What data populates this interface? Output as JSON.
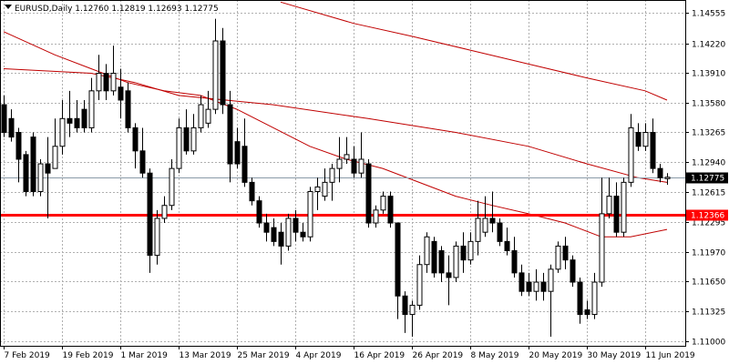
{
  "chart_data": {
    "type": "candlestick",
    "title": "EURUSD,Daily  1.12760 1.12819 1.12693 1.12775",
    "categories": [
      "7 Feb 2019",
      null,
      null,
      null,
      null,
      null,
      null,
      null,
      "19 Feb 2019",
      null,
      null,
      null,
      null,
      null,
      null,
      null,
      "1 Mar 2019",
      null,
      null,
      null,
      null,
      null,
      null,
      null,
      "13 Mar 2019",
      null,
      null,
      null,
      null,
      null,
      null,
      null,
      "25 Mar 2019",
      null,
      null,
      null,
      null,
      null,
      null,
      null,
      "4 Apr 2019",
      null,
      null,
      null,
      null,
      null,
      null,
      null,
      "16 Apr 2019",
      null,
      null,
      null,
      null,
      null,
      null,
      null,
      "26 Apr 2019",
      null,
      null,
      null,
      null,
      null,
      null,
      null,
      "8 May 2019",
      null,
      null,
      null,
      null,
      null,
      null,
      null,
      "20 May 2019",
      null,
      null,
      null,
      null,
      null,
      null,
      null,
      "30 May 2019",
      null,
      null,
      null,
      null,
      null,
      null,
      null,
      "11 Jun 2019",
      null,
      null,
      null
    ],
    "ohlc": {
      "open": [
        1.1356,
        1.1341,
        1.1326,
        1.1302,
        1.1321,
        1.1262,
        1.1292,
        1.1287,
        1.1311,
        1.1341,
        1.1341,
        1.1351,
        1.1331,
        1.1371,
        1.139,
        1.1371,
        1.1375,
        1.1371,
        1.1331,
        1.1306,
        1.1282,
        1.1193,
        1.1233,
        1.1247,
        1.1287,
        1.1331,
        1.1306,
        1.1331,
        1.1336,
        1.1351,
        1.1425,
        1.1356,
        1.1316,
        1.1311,
        1.1272,
        1.1252,
        1.1228,
        1.1223,
        1.1218,
        1.1203,
        1.1233,
        1.1218,
        1.1213,
        1.1262,
        1.1257,
        1.1272,
        1.1287,
        1.1297,
        1.1297,
        1.1282,
        1.1292,
        1.1228,
        1.1242,
        1.1257,
        1.1228,
        1.1149,
        1.1129,
        1.1139,
        1.1183,
        1.1208,
        1.1198,
        1.1174,
        1.1169,
        1.1203,
        1.1188,
        1.1208,
        1.1218,
        1.1233,
        1.1228,
        1.1208,
        1.1198,
        1.1174,
        1.1164,
        1.1154,
        1.1164,
        1.1154,
        1.1178,
        1.1203,
        1.1188,
        1.1164,
        1.1134,
        1.1129,
        1.1164,
        1.1238,
        1.1257,
        1.1218,
        1.1272,
        1.1326,
        1.1311,
        1.1326,
        1.1287,
        1.1276
      ],
      "high": [
        1.1366,
        1.1351,
        1.1331,
        1.1306,
        1.1326,
        1.1297,
        1.1321,
        1.1341,
        1.1361,
        1.1371,
        1.1361,
        1.1361,
        1.1385,
        1.141,
        1.14,
        1.142,
        1.1395,
        1.138,
        1.1336,
        1.1331,
        1.1287,
        1.1242,
        1.1257,
        1.1297,
        1.1341,
        1.1351,
        1.1346,
        1.1366,
        1.1371,
        1.1449,
        1.1439,
        1.1371,
        1.1331,
        1.1341,
        1.1277,
        1.1257,
        1.1238,
        1.1233,
        1.1228,
        1.1238,
        1.1242,
        1.1228,
        1.1267,
        1.1277,
        1.1287,
        1.1292,
        1.1321,
        1.1321,
        1.1311,
        1.1326,
        1.1297,
        1.1247,
        1.1262,
        1.1262,
        1.1228,
        1.1154,
        1.1144,
        1.1193,
        1.1218,
        1.1213,
        1.1203,
        1.1193,
        1.1208,
        1.1218,
        1.1218,
        1.1252,
        1.1257,
        1.1262,
        1.1233,
        1.1223,
        1.1213,
        1.1183,
        1.1174,
        1.1178,
        1.1174,
        1.1183,
        1.1208,
        1.1213,
        1.1193,
        1.1169,
        1.1144,
        1.1174,
        1.1277,
        1.1277,
        1.1272,
        1.1277,
        1.1346,
        1.1336,
        1.1336,
        1.1341,
        1.1292,
        1.12819
      ],
      "low": [
        1.1321,
        1.1316,
        1.1272,
        1.1257,
        1.1257,
        1.1257,
        1.1233,
        1.1287,
        1.1302,
        1.1321,
        1.1326,
        1.1326,
        1.1326,
        1.1361,
        1.1361,
        1.1366,
        1.1341,
        1.1326,
        1.1287,
        1.1277,
        1.1174,
        1.1183,
        1.1228,
        1.1242,
        1.1282,
        1.1302,
        1.1302,
        1.1326,
        1.1331,
        1.1346,
        1.1346,
        1.1272,
        1.1287,
        1.1267,
        1.1247,
        1.1223,
        1.1208,
        1.1203,
        1.1183,
        1.1198,
        1.1208,
        1.1208,
        1.1208,
        1.1242,
        1.1252,
        1.1252,
        1.1272,
        1.1292,
        1.1277,
        1.1277,
        1.1223,
        1.1223,
        1.1238,
        1.1223,
        1.1124,
        1.1109,
        1.1105,
        1.1134,
        1.1174,
        1.1169,
        1.1164,
        1.1139,
        1.1164,
        1.1174,
        1.1183,
        1.1193,
        1.1213,
        1.1218,
        1.1203,
        1.1193,
        1.1169,
        1.1149,
        1.1149,
        1.1144,
        1.1144,
        1.1105,
        1.1174,
        1.1178,
        1.1159,
        1.1119,
        1.1124,
        1.1124,
        1.1159,
        1.1233,
        1.1213,
        1.1213,
        1.1267,
        1.1306,
        1.1306,
        1.1282,
        1.1272,
        1.12693
      ],
      "close": [
        1.1326,
        1.1321,
        1.1297,
        1.1262,
        1.1262,
        1.1292,
        1.1282,
        1.1311,
        1.1341,
        1.1336,
        1.1331,
        1.1331,
        1.1371,
        1.139,
        1.1371,
        1.139,
        1.1361,
        1.1331,
        1.1306,
        1.1282,
        1.1193,
        1.1233,
        1.1247,
        1.1287,
        1.1331,
        1.1306,
        1.1331,
        1.1356,
        1.1351,
        1.1425,
        1.1356,
        1.1292,
        1.1292,
        1.1272,
        1.1252,
        1.1228,
        1.1218,
        1.1208,
        1.1203,
        1.1233,
        1.1218,
        1.1213,
        1.1262,
        1.1267,
        1.1272,
        1.1287,
        1.1297,
        1.1302,
        1.1282,
        1.1297,
        1.1228,
        1.1242,
        1.1257,
        1.1228,
        1.1149,
        1.1129,
        1.1139,
        1.1183,
        1.1213,
        1.1174,
        1.1174,
        1.1169,
        1.1203,
        1.1188,
        1.1208,
        1.1233,
        1.1233,
        1.1228,
        1.1208,
        1.1198,
        1.1174,
        1.1154,
        1.1154,
        1.1164,
        1.1154,
        1.1178,
        1.1203,
        1.1188,
        1.1164,
        1.1129,
        1.1129,
        1.1164,
        1.1238,
        1.1257,
        1.1218,
        1.1272,
        1.1331,
        1.1311,
        1.1326,
        1.1287,
        1.1277,
        1.12775
      ]
    },
    "bull_color": "#ffffff",
    "bear_color": "#000000",
    "lines": [
      {
        "color": "#c00000",
        "x": [
          38,
          48,
          56,
          64,
          72,
          80,
          88,
          91
        ],
        "values": [
          1.1467,
          1.1444,
          1.143,
          1.1415,
          1.14,
          1.1385,
          1.1371,
          1.1361
        ]
      },
      {
        "color": "#c00000",
        "x": [
          0,
          12,
          18,
          24,
          37,
          50,
          62,
          72,
          80,
          87,
          91
        ],
        "values": [
          1.1395,
          1.139,
          1.138,
          1.1366,
          1.1356,
          1.1341,
          1.1326,
          1.1311,
          1.1292,
          1.1277,
          1.1272
        ]
      },
      {
        "color": "#c00000",
        "x": [
          0,
          7,
          12,
          17,
          22,
          27,
          32,
          37,
          42,
          47,
          52,
          57,
          62,
          67,
          72,
          77,
          82,
          86,
          91
        ],
        "values": [
          1.1435,
          1.141,
          1.1395,
          1.138,
          1.1371,
          1.1366,
          1.1351,
          1.1331,
          1.1311,
          1.1297,
          1.1287,
          1.1272,
          1.1257,
          1.1247,
          1.1238,
          1.1228,
          1.1213,
          1.1213,
          1.1221
        ]
      }
    ],
    "levels": [
      {
        "value": 1.12366,
        "color": "#ff0000"
      },
      {
        "value": 1.12775,
        "color": "#000000"
      }
    ],
    "ylim": [
      1.10951,
      1.14693
    ],
    "yticks": [
      1.14555,
      {
        "value": 1.1422,
        "label": "1.14220"
      },
      {
        "value": 1.1391,
        "label": "1.13910"
      },
      {
        "value": 1.1358,
        "label": "1.13580"
      },
      1.13265,
      {
        "value": 1.1294,
        "label": "1.12940"
      },
      1.12615,
      1.12295,
      {
        "value": 1.1197,
        "label": "1.11970"
      },
      {
        "value": 1.1165,
        "label": "1.11650"
      },
      1.11325,
      {
        "value": 1.11,
        "label": "1.11000"
      }
    ],
    "grid": true
  }
}
